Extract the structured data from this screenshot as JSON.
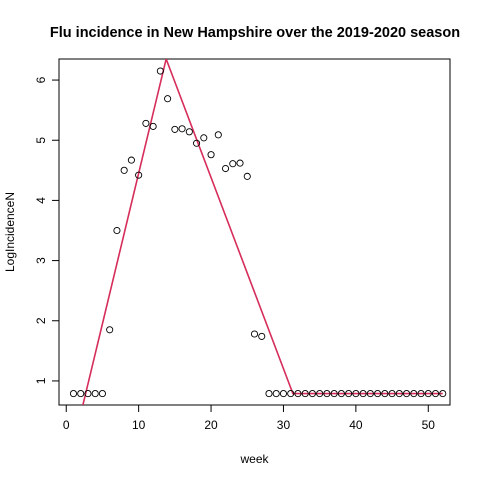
{
  "chart_data": {
    "type": "scatter",
    "title": "Flu incidence in New Hampshire over the 2019-2020 season",
    "xlabel": "week",
    "ylabel": "LogIncidenceN",
    "xlim": [
      -1,
      53
    ],
    "ylim": [
      0.6,
      6.35
    ],
    "xticks": [
      0,
      10,
      20,
      30,
      40,
      50
    ],
    "yticks": [
      1,
      2,
      3,
      4,
      5,
      6
    ],
    "grid": false,
    "legend": "none",
    "point_color": "#000000",
    "line_color": "#d62d5a",
    "points": {
      "x": [
        1,
        2,
        3,
        4,
        5,
        6,
        7,
        8,
        9,
        10,
        11,
        12,
        13,
        14,
        15,
        16,
        17,
        18,
        19,
        20,
        21,
        22,
        23,
        24,
        25,
        26,
        27,
        28,
        29,
        30,
        31,
        32,
        33,
        34,
        35,
        36,
        37,
        38,
        39,
        40,
        41,
        42,
        43,
        44,
        45,
        46,
        47,
        48,
        49,
        50,
        51,
        52
      ],
      "y": [
        0.79,
        0.79,
        0.79,
        0.79,
        0.79,
        1.85,
        3.5,
        4.5,
        4.67,
        4.42,
        5.28,
        5.23,
        6.15,
        5.69,
        5.18,
        5.19,
        5.14,
        4.95,
        5.04,
        4.76,
        5.09,
        4.53,
        4.61,
        4.62,
        4.4,
        1.78,
        1.74,
        0.79,
        0.79,
        0.79,
        0.79,
        0.79,
        0.79,
        0.79,
        0.79,
        0.79,
        0.79,
        0.79,
        0.79,
        0.79,
        0.79,
        0.79,
        0.79,
        0.79,
        0.79,
        0.79,
        0.79,
        0.79,
        0.79,
        0.79,
        0.79,
        0.79
      ]
    },
    "fit_line": {
      "x": [
        2.3,
        13.8,
        31.3,
        52
      ],
      "y": [
        0.6,
        6.35,
        0.79,
        0.79
      ]
    }
  }
}
